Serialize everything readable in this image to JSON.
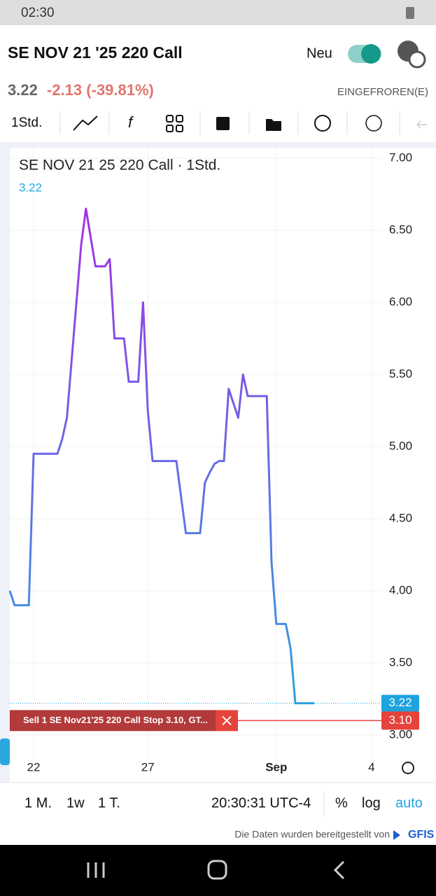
{
  "status_bar": {
    "time": "02:30"
  },
  "header": {
    "title": "SE NOV 21 '25 220 Call",
    "toggle_label": "Neu"
  },
  "quote": {
    "price": "3.22",
    "change": "-2.13 (-39.81%)",
    "state": "EINGEFROREN(E)"
  },
  "toolbar": {
    "interval": "1Std."
  },
  "bottom_bar": {
    "ranges": [
      "1 M.",
      "1w",
      "1 T."
    ],
    "time": "20:30:31 UTC-4",
    "options": [
      "%",
      "log",
      "auto"
    ]
  },
  "footer": {
    "text": "Die Daten wurden bereitgestellt von",
    "brand": "GFIS"
  },
  "chart_data": {
    "type": "line",
    "title": "SE NOV 21 25 220 Call · 1Std.",
    "legend_value": "3.22",
    "gradient": [
      "#b026e8",
      "#27a8e0"
    ],
    "categories": [
      null,
      null,
      null,
      null,
      null,
      "22",
      null,
      null,
      null,
      null,
      null,
      null,
      null,
      null,
      null,
      null,
      null,
      null,
      null,
      null,
      null,
      null,
      null,
      null,
      null,
      null,
      null,
      null,
      null,
      "27",
      null,
      null,
      null,
      null,
      null,
      null,
      null,
      null,
      null,
      null,
      null,
      null,
      null,
      null,
      null,
      null,
      null,
      null,
      null,
      null,
      null,
      null,
      null,
      null,
      null,
      null,
      "Sep",
      null,
      null,
      null,
      null,
      null,
      null,
      null,
      null,
      null,
      null,
      null,
      null,
      null,
      null,
      null,
      null,
      null,
      null,
      null,
      "4",
      null
    ],
    "values": [
      4.0,
      3.9,
      3.9,
      3.9,
      3.9,
      4.95,
      4.95,
      4.95,
      4.95,
      4.95,
      4.95,
      5.05,
      5.2,
      5.6,
      6.0,
      6.4,
      6.65,
      6.45,
      6.25,
      6.25,
      6.25,
      6.3,
      5.75,
      5.75,
      5.75,
      5.45,
      5.45,
      5.45,
      6.0,
      5.25,
      4.9,
      4.9,
      4.9,
      4.9,
      4.9,
      4.9,
      4.65,
      4.4,
      4.4,
      4.4,
      4.4,
      4.75,
      4.82,
      4.88,
      4.9,
      4.9,
      5.4,
      5.3,
      5.2,
      5.5,
      5.35,
      5.35,
      5.35,
      5.35,
      5.35,
      4.2,
      3.77,
      3.77,
      3.77,
      3.6,
      3.22,
      3.22,
      3.22,
      3.22,
      3.22,
      null,
      null,
      null,
      null,
      null,
      null,
      null,
      null,
      null,
      null,
      null,
      null,
      null
    ],
    "ylim": [
      3.0,
      7.0
    ],
    "yticks": [
      {
        "value": 3.0,
        "label": "3.00"
      },
      {
        "value": 3.5,
        "label": "3.50"
      },
      {
        "value": 4.0,
        "label": "4.00"
      },
      {
        "value": 4.5,
        "label": "4.50"
      },
      {
        "value": 5.0,
        "label": "5.00"
      },
      {
        "value": 5.5,
        "label": "5.50"
      },
      {
        "value": 6.0,
        "label": "6.00"
      },
      {
        "value": 6.5,
        "label": "6.50"
      },
      {
        "value": 7.0,
        "label": "7.00"
      }
    ],
    "grid": true,
    "last_value": {
      "value": 3.22,
      "color": "#1ea3df"
    },
    "order_line": {
      "value": 3.1,
      "label": "3.10",
      "text": "Sell 1 SE Nov21'25 220 Call Stop 3.10, GT...",
      "color": "#e5433b"
    }
  }
}
